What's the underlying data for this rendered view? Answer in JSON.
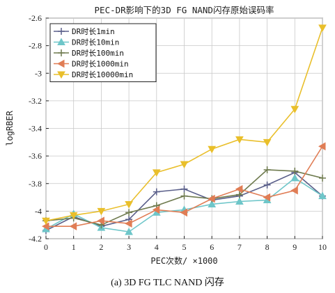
{
  "chart_data": {
    "type": "line",
    "title": "PEC-DR影响下的3D FG NAND闪存原始误码率",
    "xlabel": "PEC次数/ ×1000",
    "ylabel": "logRBER",
    "xlim": [
      0,
      10
    ],
    "ylim": [
      -4.2,
      -2.6
    ],
    "x_ticks": [
      "0",
      "1",
      "2",
      "3",
      "4",
      "5",
      "6",
      "7",
      "8",
      "9",
      "10"
    ],
    "y_ticks": [
      "-4.2",
      "-4",
      "-3.8",
      "-3.6",
      "-3.4",
      "-3.2",
      "-3",
      "-2.8",
      "-2.6"
    ],
    "grid": true,
    "legend_position": "top-left",
    "x": [
      0,
      1,
      2,
      3,
      4,
      5,
      6,
      7,
      8,
      9,
      10
    ],
    "series": [
      {
        "name": "DR时长1min",
        "color": "#5a5f8a",
        "marker": "plus",
        "values": [
          -4.14,
          -4.04,
          -4.11,
          -4.06,
          -3.86,
          -3.84,
          -3.92,
          -3.89,
          -3.81,
          -3.72,
          -3.89
        ]
      },
      {
        "name": "DR时长10min",
        "color": "#6ec6c9",
        "marker": "triangle-up",
        "values": [
          -4.13,
          -4.02,
          -4.12,
          -4.15,
          -4.01,
          -3.99,
          -3.95,
          -3.93,
          -3.92,
          -3.76,
          -3.89
        ]
      },
      {
        "name": "DR时长100min",
        "color": "#6e7a4e",
        "marker": "plus",
        "values": [
          -4.07,
          -4.05,
          -4.1,
          -4.01,
          -3.96,
          -3.89,
          -3.91,
          -3.88,
          -3.7,
          -3.71,
          -3.76
        ]
      },
      {
        "name": "DR时长1000min",
        "color": "#e07d55",
        "marker": "triangle-left",
        "values": [
          -4.11,
          -4.11,
          -4.07,
          -4.09,
          -3.99,
          -4.01,
          -3.91,
          -3.84,
          -3.9,
          -3.85,
          -3.53
        ]
      },
      {
        "name": "DR时长10000min",
        "color": "#e9bf2b",
        "marker": "triangle-down",
        "values": [
          -4.07,
          -4.03,
          -4.0,
          -3.95,
          -3.72,
          -3.66,
          -3.55,
          -3.48,
          -3.5,
          -3.26,
          -2.67
        ]
      }
    ]
  },
  "caption": "(a) 3D FG TLC NAND 闪存"
}
